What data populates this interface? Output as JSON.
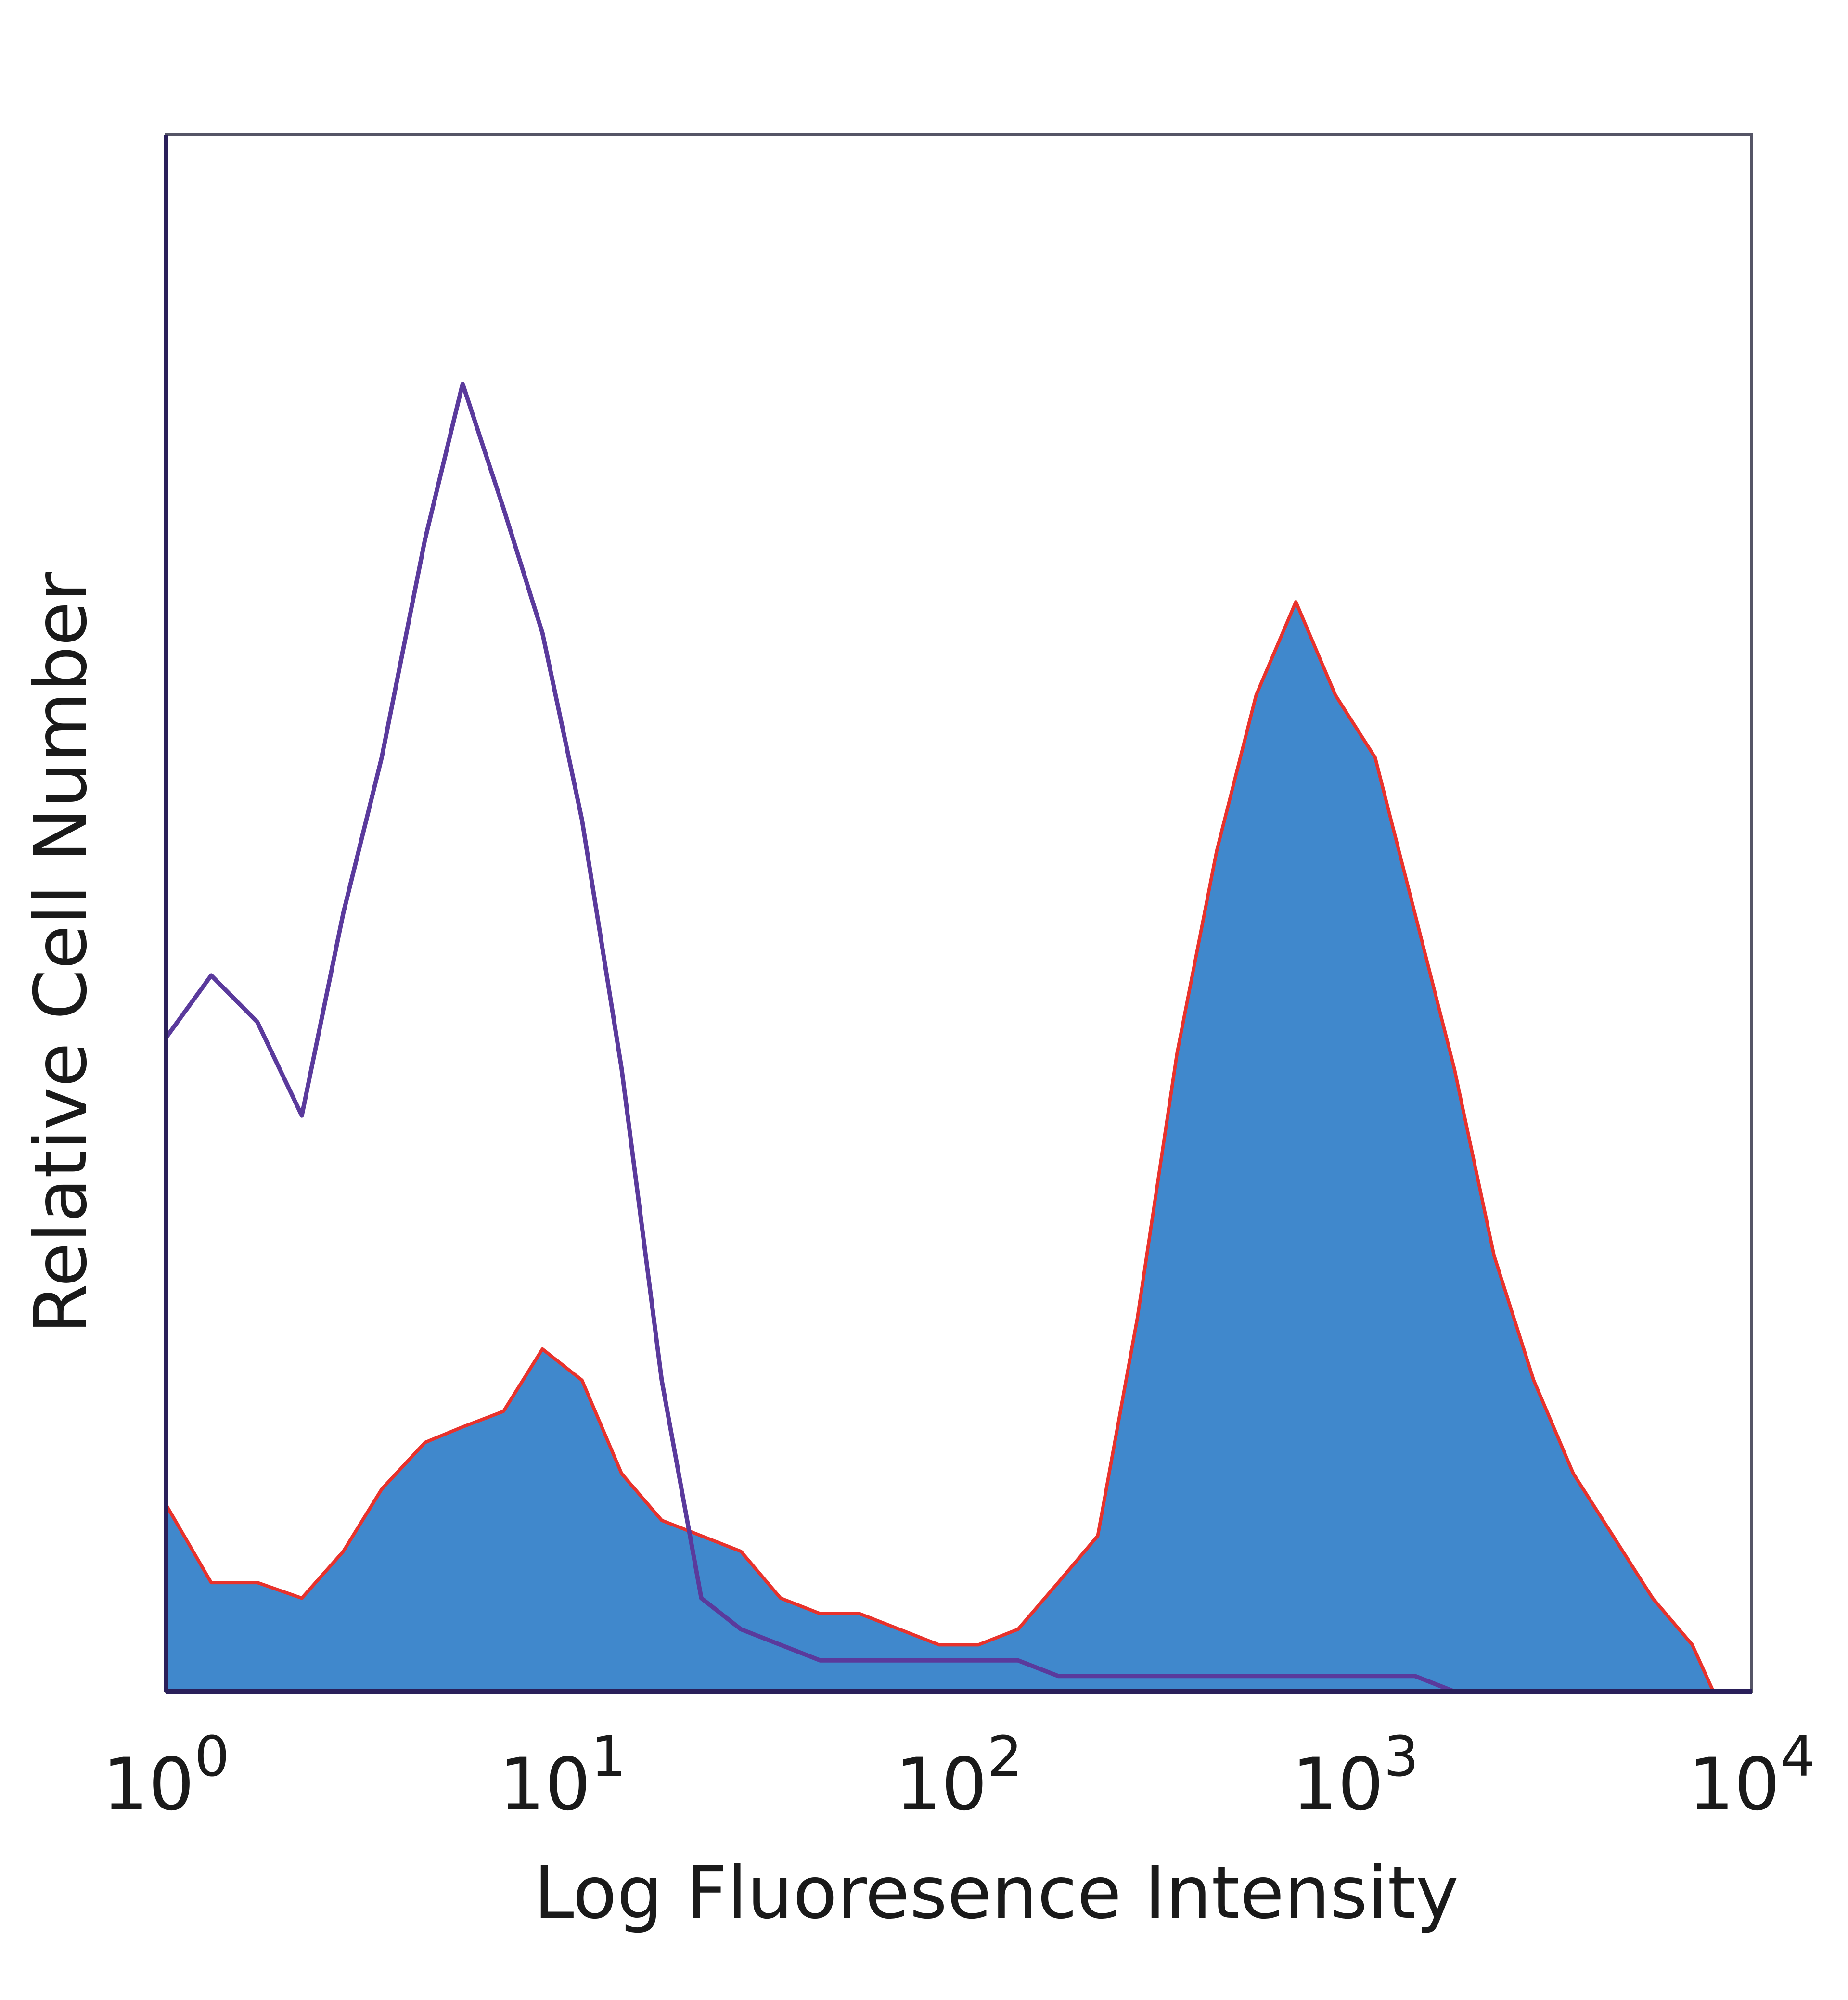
{
  "chart_data": {
    "type": "area",
    "title": "",
    "xlabel": "Log Fluoresence Intensity",
    "ylabel": "Relative Cell Number",
    "xscale": "log",
    "xlim": [
      1,
      10000
    ],
    "ylim": [
      0,
      100
    ],
    "grid": false,
    "legend": "none",
    "x_ticks": [
      {
        "value": 1,
        "base": "10",
        "exp": "0"
      },
      {
        "value": 10,
        "base": "10",
        "exp": "1"
      },
      {
        "value": 100,
        "base": "10",
        "exp": "2"
      },
      {
        "value": 1000,
        "base": "10",
        "exp": "3"
      },
      {
        "value": 10000,
        "base": "10",
        "exp": "4"
      }
    ],
    "series": [
      {
        "role": "stained-filled",
        "fill": "#4088cc",
        "edge": "#e8322c",
        "x": [
          1.0,
          1.3,
          1.7,
          2.2,
          2.8,
          3.5,
          4.5,
          5.6,
          7.1,
          8.9,
          11.2,
          14.1,
          17.8,
          22.4,
          28.2,
          35.5,
          44.7,
          56.2,
          70.8,
          89.1,
          112,
          141,
          178,
          224,
          282,
          355,
          447,
          562,
          708,
          891,
          1122,
          1413,
          1778,
          2239,
          2818,
          3548,
          4467,
          5623,
          7079,
          8000
        ],
        "values": [
          12,
          7,
          7,
          6,
          9,
          13,
          16,
          17,
          18,
          22,
          20,
          14,
          11,
          10,
          9,
          6,
          5,
          5,
          4,
          3,
          3,
          4,
          7,
          10,
          24,
          41,
          54,
          64,
          70,
          64,
          60,
          50,
          40,
          28,
          20,
          14,
          10,
          6,
          3,
          0
        ]
      },
      {
        "role": "control-outline",
        "stroke": "#5a3a9c",
        "x": [
          1.0,
          1.3,
          1.7,
          2.2,
          2.8,
          3.5,
          4.5,
          5.6,
          7.1,
          8.9,
          11.2,
          14.1,
          17.8,
          22.4,
          28.2,
          35.5,
          44.7,
          56.2,
          70.8,
          89.1,
          112,
          141,
          178,
          224,
          282,
          355,
          447,
          562,
          708,
          891,
          1122,
          1413,
          1778
        ],
        "values": [
          42,
          46,
          43,
          37,
          50,
          60,
          74,
          84,
          76,
          68,
          56,
          40,
          20,
          6,
          4,
          3,
          2,
          2,
          2,
          2,
          2,
          2,
          1,
          1,
          1,
          1,
          1,
          1,
          1,
          1,
          1,
          1,
          0
        ]
      }
    ]
  }
}
